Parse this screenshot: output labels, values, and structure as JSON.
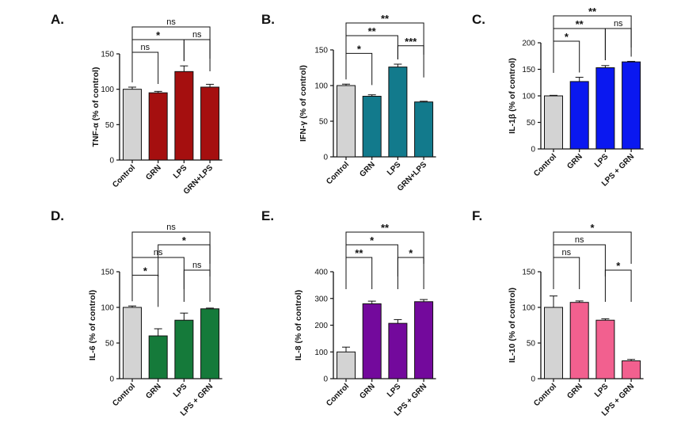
{
  "chart_data": [
    {
      "panel": "A.",
      "type": "bar",
      "ylabel": "TNF-α (% of control)",
      "categories": [
        "Control",
        "GRN",
        "LPS",
        "GRN+LPS"
      ],
      "values": [
        100,
        95,
        125,
        103
      ],
      "errors": [
        3,
        2,
        8,
        4
      ],
      "colors": [
        "#d3d3d3",
        "#a50f0f",
        "#a50f0f",
        "#a50f0f"
      ],
      "ylim": [
        0,
        150
      ],
      "yticks": [
        0,
        50,
        100,
        150
      ],
      "brackets": [
        {
          "from": 0,
          "to": 3,
          "label": "ns",
          "level": 3
        },
        {
          "from": 0,
          "to": 2,
          "label": "*",
          "level": 2
        },
        {
          "from": 2,
          "to": 3,
          "label": "ns",
          "level": 2
        },
        {
          "from": 0,
          "to": 1,
          "label": "ns",
          "level": 1
        }
      ]
    },
    {
      "panel": "B.",
      "type": "bar",
      "ylabel": "IFN-γ (% of control)",
      "categories": [
        "Control",
        "GRN",
        "LPS",
        "GRN+LPS"
      ],
      "values": [
        100,
        85,
        126,
        77
      ],
      "errors": [
        2,
        2,
        4,
        1
      ],
      "colors": [
        "#d3d3d3",
        "#127a8c",
        "#127a8c",
        "#127a8c"
      ],
      "ylim": [
        0,
        150
      ],
      "yticks": [
        0,
        50,
        100,
        150
      ],
      "brackets": [
        {
          "from": 0,
          "to": 3,
          "label": "**",
          "level": 3
        },
        {
          "from": 0,
          "to": 2,
          "label": "**",
          "level": 2
        },
        {
          "from": 2,
          "to": 3,
          "label": "***",
          "level": 1.2
        },
        {
          "from": 0,
          "to": 1,
          "label": "*",
          "level": 0.6
        }
      ]
    },
    {
      "panel": "C.",
      "type": "bar",
      "ylabel": "IL-1β (% of control)",
      "categories": [
        "Control",
        "GRN",
        "LPS",
        "LPS + GRN"
      ],
      "values": [
        100,
        127,
        153,
        164
      ],
      "errors": [
        1,
        8,
        4,
        1
      ],
      "colors": [
        "#d3d3d3",
        "#0a18f0",
        "#0a18f0",
        "#0a18f0"
      ],
      "ylim": [
        0,
        200
      ],
      "yticks": [
        0,
        50,
        100,
        150,
        200
      ],
      "brackets": [
        {
          "from": 0,
          "to": 3,
          "label": "**",
          "level": 3
        },
        {
          "from": 0,
          "to": 2,
          "label": "**",
          "level": 2
        },
        {
          "from": 2,
          "to": 3,
          "label": "ns",
          "level": 2
        },
        {
          "from": 0,
          "to": 1,
          "label": "*",
          "level": 1
        }
      ]
    },
    {
      "panel": "D.",
      "type": "bar",
      "ylabel": "IL-6 (% of control)",
      "categories": [
        "Control",
        "GRN",
        "LPS",
        "LPS + GRN"
      ],
      "values": [
        100,
        60,
        82,
        98
      ],
      "errors": [
        2,
        10,
        10,
        1
      ],
      "colors": [
        "#d3d3d3",
        "#157a3a",
        "#157a3a",
        "#157a3a"
      ],
      "ylim": [
        0,
        150
      ],
      "yticks": [
        0,
        50,
        100,
        150
      ],
      "brackets": [
        {
          "from": 0,
          "to": 3,
          "label": "ns",
          "level": 4
        },
        {
          "from": 1,
          "to": 3,
          "label": "*",
          "level": 3
        },
        {
          "from": 0,
          "to": 2,
          "label": "ns",
          "level": 2
        },
        {
          "from": 2,
          "to": 3,
          "label": "ns",
          "level": 1
        },
        {
          "from": 0,
          "to": 1,
          "label": "*",
          "level": 0.6
        }
      ]
    },
    {
      "panel": "E.",
      "type": "bar",
      "ylabel": "IL-8 (% of control)",
      "categories": [
        "Control",
        "GRN",
        "LPS",
        "LPS + GRN"
      ],
      "values": [
        100,
        280,
        207,
        288
      ],
      "errors": [
        18,
        10,
        14,
        8
      ],
      "colors": [
        "#d3d3d3",
        "#73099c",
        "#73099c",
        "#73099c"
      ],
      "ylim": [
        0,
        400
      ],
      "yticks": [
        0,
        100,
        200,
        300,
        400
      ],
      "brackets": [
        {
          "from": 0,
          "to": 3,
          "label": "**",
          "level": 4
        },
        {
          "from": 0,
          "to": 2,
          "label": "*",
          "level": 3
        },
        {
          "from": 0,
          "to": 1,
          "label": "**",
          "level": 2
        },
        {
          "from": 2,
          "to": 3,
          "label": "*",
          "level": 2
        }
      ]
    },
    {
      "panel": "F.",
      "type": "bar",
      "ylabel": "IL-10 (% of control)",
      "categories": [
        "Control",
        "GRN",
        "LPS",
        "LPS + GRN"
      ],
      "values": [
        100,
        107,
        82,
        25
      ],
      "errors": [
        16,
        2,
        2,
        2
      ],
      "colors": [
        "#d3d3d3",
        "#f2608f",
        "#f2608f",
        "#f2608f"
      ],
      "ylim": [
        0,
        150
      ],
      "yticks": [
        0,
        50,
        100,
        150
      ],
      "brackets": [
        {
          "from": 0,
          "to": 3,
          "label": "*",
          "level": 4
        },
        {
          "from": 0,
          "to": 2,
          "label": "ns",
          "level": 3
        },
        {
          "from": 0,
          "to": 1,
          "label": "ns",
          "level": 2
        },
        {
          "from": 2,
          "to": 3,
          "label": "*",
          "level": 1
        }
      ]
    }
  ]
}
